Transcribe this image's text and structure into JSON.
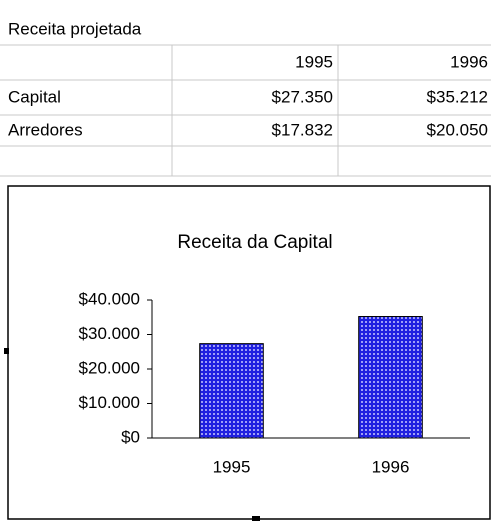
{
  "table": {
    "title": "Receita projetada",
    "header": [
      "1995",
      "1996"
    ],
    "rows": [
      [
        "Capital",
        "$27.350",
        "$35.212"
      ],
      [
        "Arredores",
        "$17.832",
        "$20.050"
      ]
    ]
  },
  "chart_data": {
    "type": "bar",
    "title": "Receita da Capital",
    "categories": [
      "1995",
      "1996"
    ],
    "values": [
      27350,
      35212
    ],
    "color": "#2020e0",
    "ylim": [
      0,
      40000
    ],
    "yticks": [
      {
        "value": 0,
        "label": "$0"
      },
      {
        "value": 10000,
        "label": "$10.000"
      },
      {
        "value": 20000,
        "label": "$20.000"
      },
      {
        "value": 30000,
        "label": "$30.000"
      },
      {
        "value": 40000,
        "label": "$40.000"
      }
    ]
  }
}
